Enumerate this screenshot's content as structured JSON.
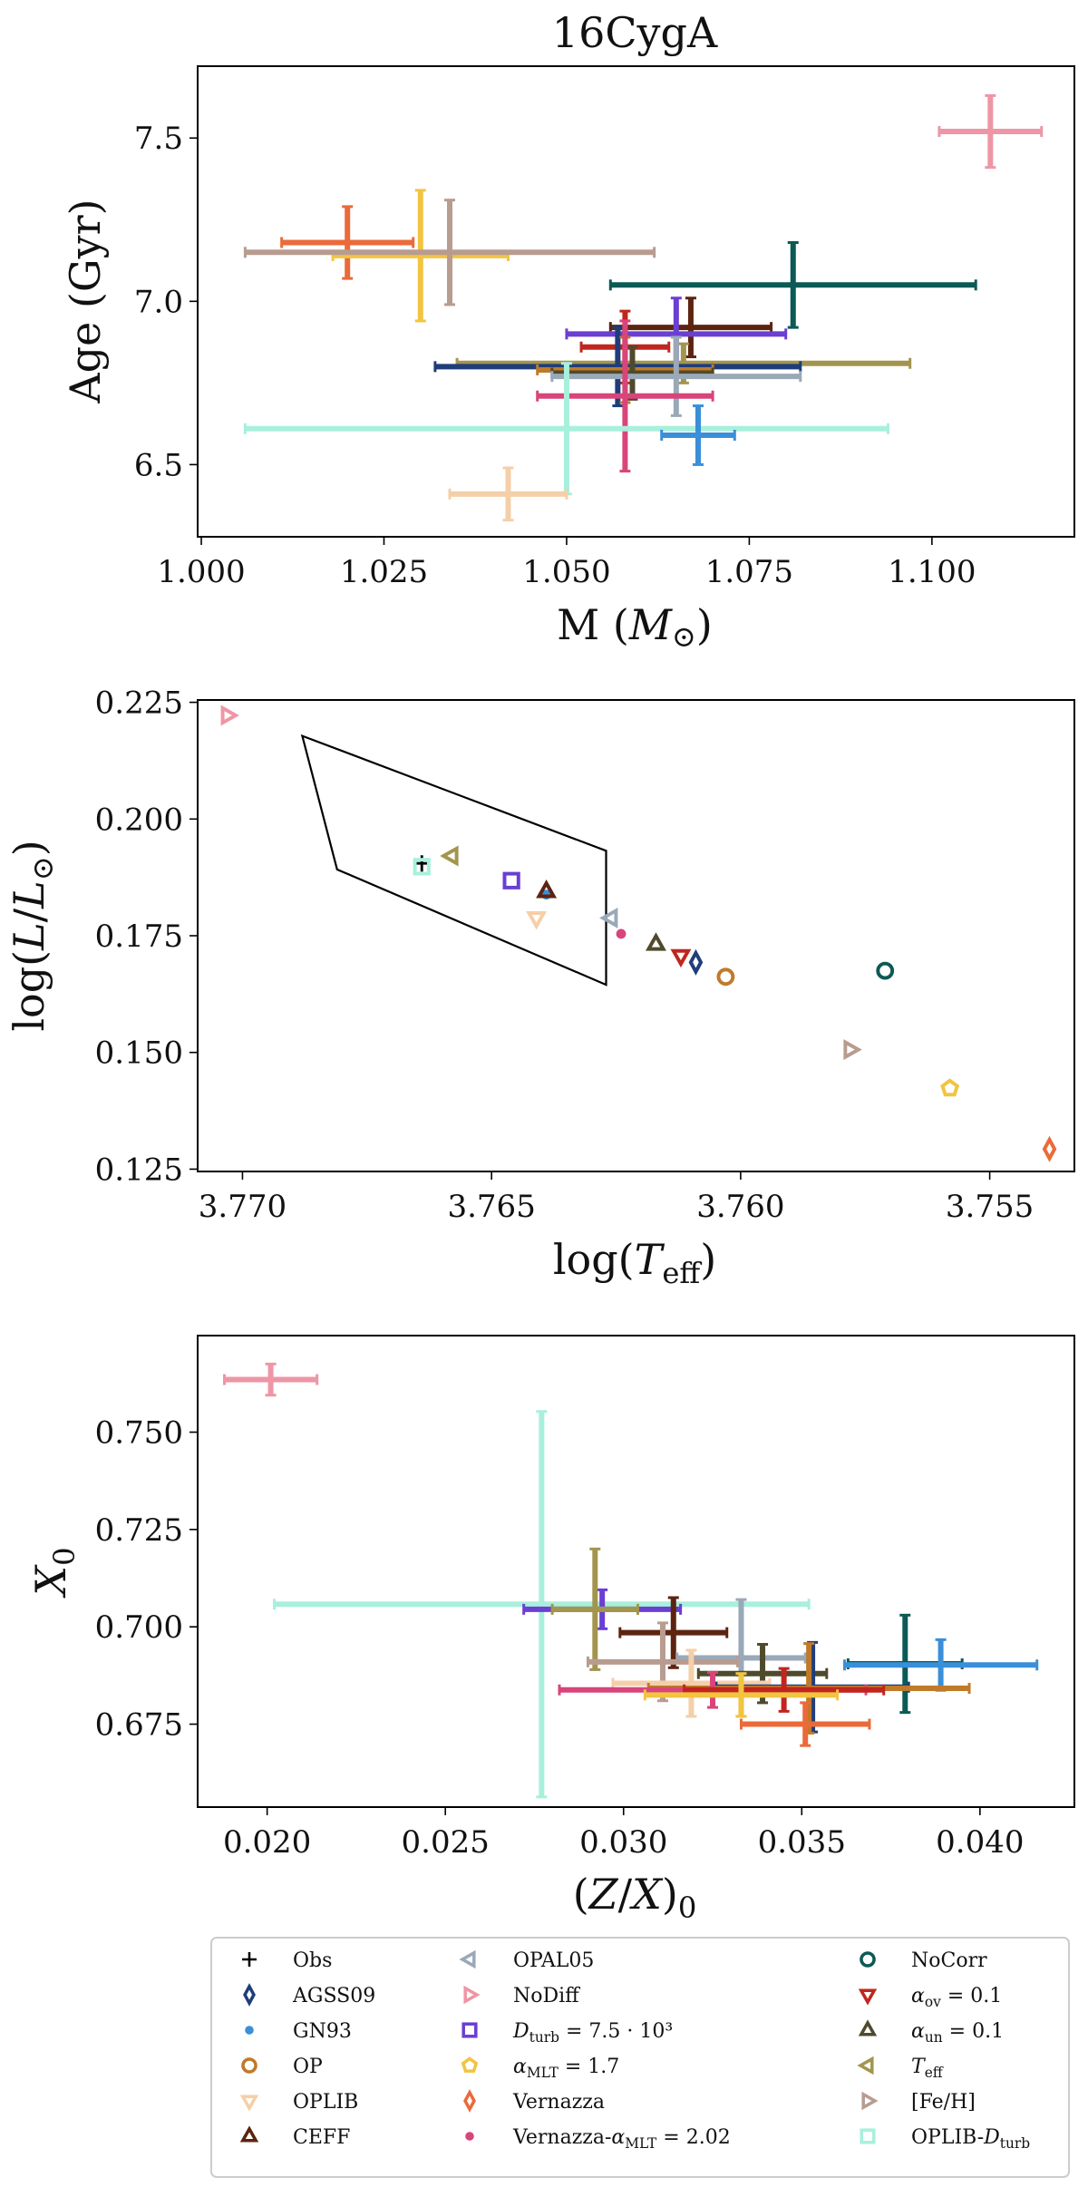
{
  "series_info": [
    {
      "key": "Obs",
      "label": "Obs",
      "color": "#000000",
      "marker": "plus"
    },
    {
      "key": "AGSS09",
      "label": "AGSS09",
      "color": "#1f3d7a",
      "marker": "diamond"
    },
    {
      "key": "GN93",
      "label": "GN93",
      "color": "#3a8fd9",
      "marker": "dot"
    },
    {
      "key": "OP",
      "label": "OP",
      "color": "#bf7a2a",
      "marker": "circle"
    },
    {
      "key": "OPLIB",
      "label": "OPLIB",
      "color": "#f5cfa8",
      "marker": "tri_down"
    },
    {
      "key": "CEFF",
      "label": "CEFF",
      "color": "#5c2410",
      "marker": "tri_up"
    },
    {
      "key": "OPAL05",
      "label": "OPAL05",
      "color": "#9aa9b8",
      "marker": "tri_left"
    },
    {
      "key": "NoDiff",
      "label": "NoDiff",
      "color": "#ee96a6",
      "marker": "tri_right"
    },
    {
      "key": "Dturb",
      "label": "D_turb = 7.5 · 10³",
      "color": "#6a3fd2",
      "marker": "square"
    },
    {
      "key": "aMLT",
      "label": "α_MLT = 1.7",
      "color": "#f2c440",
      "marker": "pentagon"
    },
    {
      "key": "Vernazza",
      "label": "Vernazza",
      "color": "#eb6a3a",
      "marker": "diamond"
    },
    {
      "key": "VernazzaMLT",
      "label": "Vernazza-α_MLT = 2.02",
      "color": "#d8457a",
      "marker": "dot"
    },
    {
      "key": "NoCorr",
      "label": "NoCorr",
      "color": "#0b5a55",
      "marker": "circle"
    },
    {
      "key": "aov",
      "label": "α_ov = 0.1",
      "color": "#c0261f",
      "marker": "tri_down"
    },
    {
      "key": "aun",
      "label": "α_un = 0.1",
      "color": "#4f4a2c",
      "marker": "tri_up"
    },
    {
      "key": "Teff",
      "label": "T_eff",
      "color": "#a3954e",
      "marker": "tri_left"
    },
    {
      "key": "FeH",
      "label": "[Fe/H]",
      "color": "#b89c90",
      "marker": "tri_right"
    },
    {
      "key": "OPLIBDturb",
      "label": "OPLIB-D_turb",
      "color": "#a8f0dc",
      "marker": "square"
    }
  ],
  "chart_data": [
    {
      "type": "scatter",
      "title": "16CygA",
      "xlabel": "M (M_⊙)",
      "ylabel": "Age (Gyr)",
      "xlim": [
        0.9995,
        1.1195
      ],
      "ylim": [
        6.279,
        7.72
      ],
      "xticks": [
        1.0,
        1.025,
        1.05,
        1.075,
        1.1
      ],
      "xtick_labels": [
        "1.000",
        "1.025",
        "1.050",
        "1.075",
        "1.100"
      ],
      "yticks": [
        6.5,
        7.0,
        7.5
      ],
      "ytick_labels": [
        "6.5",
        "7.0",
        "7.5"
      ],
      "points": [
        {
          "s": "NoDiff",
          "x": 1.108,
          "xerr": 0.007,
          "y": 7.52,
          "yerr": 0.11
        },
        {
          "s": "Vernazza",
          "x": 1.02,
          "xerr": 0.009,
          "y": 7.18,
          "yerr": 0.11
        },
        {
          "s": "aMLT",
          "x": 1.03,
          "xerr": 0.012,
          "y": 7.14,
          "yerr": 0.2
        },
        {
          "s": "FeH",
          "x": 1.034,
          "xerr": 0.028,
          "y": 7.15,
          "yerr": 0.16
        },
        {
          "s": "NoCorr",
          "x": 1.081,
          "xerr": 0.025,
          "y": 7.05,
          "yerr": 0.13
        },
        {
          "s": "CEFF",
          "x": 1.067,
          "xerr": 0.011,
          "y": 6.92,
          "yerr": 0.09
        },
        {
          "s": "Dturb",
          "x": 1.065,
          "xerr": 0.015,
          "y": 6.9,
          "yerr": 0.11
        },
        {
          "s": "aov",
          "x": 1.058,
          "xerr": 0.006,
          "y": 6.86,
          "yerr": 0.11
        },
        {
          "s": "Teff",
          "x": 1.066,
          "xerr": 0.031,
          "y": 6.81,
          "yerr": 0.06
        },
        {
          "s": "AGSS09",
          "x": 1.057,
          "xerr": 0.025,
          "y": 6.8,
          "yerr": 0.12
        },
        {
          "s": "OP",
          "x": 1.058,
          "xerr": 0.012,
          "y": 6.79,
          "yerr": 0.1
        },
        {
          "s": "aun",
          "x": 1.059,
          "xerr": 0.011,
          "y": 6.78,
          "yerr": 0.08
        },
        {
          "s": "OPAL05",
          "x": 1.065,
          "xerr": 0.017,
          "y": 6.77,
          "yerr": 0.12
        },
        {
          "s": "VernazzaMLT",
          "x": 1.058,
          "xerr": 0.012,
          "y": 6.71,
          "yerr": 0.23
        },
        {
          "s": "OPLIBDturb",
          "x": 1.05,
          "xerr": 0.044,
          "y": 6.61,
          "yerr": 0.2
        },
        {
          "s": "GN93",
          "x": 1.068,
          "xerr": 0.005,
          "y": 6.59,
          "yerr": 0.09
        },
        {
          "s": "OPLIB",
          "x": 1.042,
          "xerr": 0.008,
          "y": 6.41,
          "yerr": 0.08
        }
      ]
    },
    {
      "type": "scatter",
      "title": "",
      "xlabel": "log(T_eff)",
      "ylabel": "log(L/L_⊙)",
      "xlim": [
        3.7709,
        3.7533
      ],
      "ylim": [
        0.1245,
        0.2255
      ],
      "xticks": [
        3.77,
        3.765,
        3.76,
        3.755
      ],
      "xtick_labels": [
        "3.770",
        "3.765",
        "3.760",
        "3.755"
      ],
      "yticks": [
        0.125,
        0.15,
        0.175,
        0.2,
        0.225
      ],
      "ytick_labels": [
        "0.125",
        "0.150",
        "0.175",
        "0.200",
        "0.225"
      ],
      "error_box": [
        [
          3.7688,
          0.2178
        ],
        [
          3.7681,
          0.1892
        ],
        [
          3.7627,
          0.1645
        ],
        [
          3.7627,
          0.1932
        ]
      ],
      "points": [
        {
          "s": "NoDiff",
          "x": 3.7703,
          "y": 0.2222
        },
        {
          "s": "Obs",
          "x": 3.7664,
          "y": 0.1905
        },
        {
          "s": "OPLIBDturb",
          "x": 3.7664,
          "y": 0.1898
        },
        {
          "s": "Teff",
          "x": 3.7658,
          "y": 0.1921
        },
        {
          "s": "Dturb",
          "x": 3.7646,
          "y": 0.1868
        },
        {
          "s": "GN93",
          "x": 3.7639,
          "y": 0.1838
        },
        {
          "s": "CEFF",
          "x": 3.7639,
          "y": 0.1845
        },
        {
          "s": "OPLIB",
          "x": 3.7641,
          "y": 0.1788
        },
        {
          "s": "OPAL05",
          "x": 3.7626,
          "y": 0.1788
        },
        {
          "s": "VernazzaMLT",
          "x": 3.7624,
          "y": 0.1754
        },
        {
          "s": "aun",
          "x": 3.7617,
          "y": 0.1732
        },
        {
          "s": "aov",
          "x": 3.7612,
          "y": 0.1707
        },
        {
          "s": "AGSS09",
          "x": 3.7609,
          "y": 0.1693
        },
        {
          "s": "OP",
          "x": 3.7603,
          "y": 0.1662
        },
        {
          "s": "NoCorr",
          "x": 3.7571,
          "y": 0.1675
        },
        {
          "s": "FeH",
          "x": 3.7578,
          "y": 0.1506
        },
        {
          "s": "aMLT",
          "x": 3.7558,
          "y": 0.1423
        },
        {
          "s": "Vernazza",
          "x": 3.7538,
          "y": 0.1293
        }
      ]
    },
    {
      "type": "scatter",
      "title": "",
      "xlabel": "(Z/X)_0",
      "ylabel": "X_0",
      "xlim": [
        0.01805,
        0.04265
      ],
      "ylim": [
        0.6537,
        0.7748
      ],
      "xticks": [
        0.02,
        0.025,
        0.03,
        0.035,
        0.04
      ],
      "xtick_labels": [
        "0.020",
        "0.025",
        "0.030",
        "0.035",
        "0.040"
      ],
      "yticks": [
        0.675,
        0.7,
        0.725,
        0.75
      ],
      "ytick_labels": [
        "0.675",
        "0.700",
        "0.725",
        "0.750"
      ],
      "points": [
        {
          "s": "NoDiff",
          "x": 0.0201,
          "xerr": 0.0013,
          "y": 0.7635,
          "yerr": 0.004
        },
        {
          "s": "OPLIBDturb",
          "x": 0.0277,
          "xerr": 0.0075,
          "y": 0.7058,
          "yerr": 0.0495
        },
        {
          "s": "Dturb",
          "x": 0.0294,
          "xerr": 0.0022,
          "y": 0.7045,
          "yerr": 0.005
        },
        {
          "s": "Teff",
          "x": 0.0292,
          "xerr": 0.0012,
          "y": 0.7045,
          "yerr": 0.0155
        },
        {
          "s": "CEFF",
          "x": 0.0314,
          "xerr": 0.0015,
          "y": 0.6985,
          "yerr": 0.009
        },
        {
          "s": "OPAL05",
          "x": 0.0333,
          "xerr": 0.0018,
          "y": 0.692,
          "yerr": 0.015
        },
        {
          "s": "FeH",
          "x": 0.0311,
          "xerr": 0.0021,
          "y": 0.691,
          "yerr": 0.01
        },
        {
          "s": "NoCorr",
          "x": 0.0379,
          "xerr": 0.0016,
          "y": 0.6905,
          "yerr": 0.0125
        },
        {
          "s": "GN93",
          "x": 0.0389,
          "xerr": 0.0027,
          "y": 0.6902,
          "yerr": 0.0065
        },
        {
          "s": "aun",
          "x": 0.0339,
          "xerr": 0.0018,
          "y": 0.688,
          "yerr": 0.0075
        },
        {
          "s": "OPLIB",
          "x": 0.0319,
          "xerr": 0.0022,
          "y": 0.6855,
          "yerr": 0.0085
        },
        {
          "s": "AGSS09",
          "x": 0.0353,
          "xerr": 0.0027,
          "y": 0.6845,
          "yerr": 0.0115
        },
        {
          "s": "OP",
          "x": 0.0352,
          "xerr": 0.0045,
          "y": 0.6842,
          "yerr": 0.0115
        },
        {
          "s": "VernazzaMLT",
          "x": 0.0325,
          "xerr": 0.0043,
          "y": 0.6838,
          "yerr": 0.0045
        },
        {
          "s": "aov",
          "x": 0.0345,
          "xerr": 0.0028,
          "y": 0.6838,
          "yerr": 0.0055
        },
        {
          "s": "aMLT",
          "x": 0.0333,
          "xerr": 0.0027,
          "y": 0.6825,
          "yerr": 0.0055
        },
        {
          "s": "Vernazza",
          "x": 0.0351,
          "xerr": 0.0018,
          "y": 0.675,
          "yerr": 0.0055
        }
      ]
    }
  ]
}
